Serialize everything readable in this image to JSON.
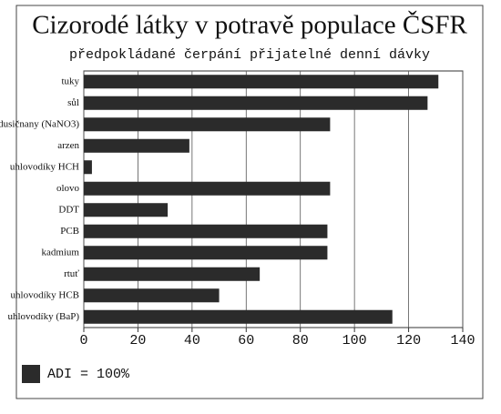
{
  "chart_data": {
    "type": "bar",
    "orientation": "horizontal",
    "title": "Cizorodé látky v potravě populace ČSFR",
    "subtitle": "předpokládané čerpání přijatelné denní dávky",
    "categories": [
      "tuky",
      "sůl",
      "dusičnany (NaNO3)",
      "arzen",
      "uhlovodíky HCH",
      "olovo",
      "DDT",
      "PCB",
      "kadmium",
      "rtuť",
      "uhlovodíky HCB",
      "uhlovodíky (BaP)"
    ],
    "series": [
      {
        "name": "ADI = 100%",
        "color": "#2b2b2b",
        "values": [
          131,
          127,
          91,
          39,
          3,
          91,
          31,
          90,
          90,
          65,
          50,
          114
        ]
      }
    ],
    "xlim": [
      0,
      140
    ],
    "xticks": [
      0,
      20,
      40,
      60,
      80,
      100,
      120,
      140
    ],
    "grid": true,
    "legend": "bottom-left"
  }
}
